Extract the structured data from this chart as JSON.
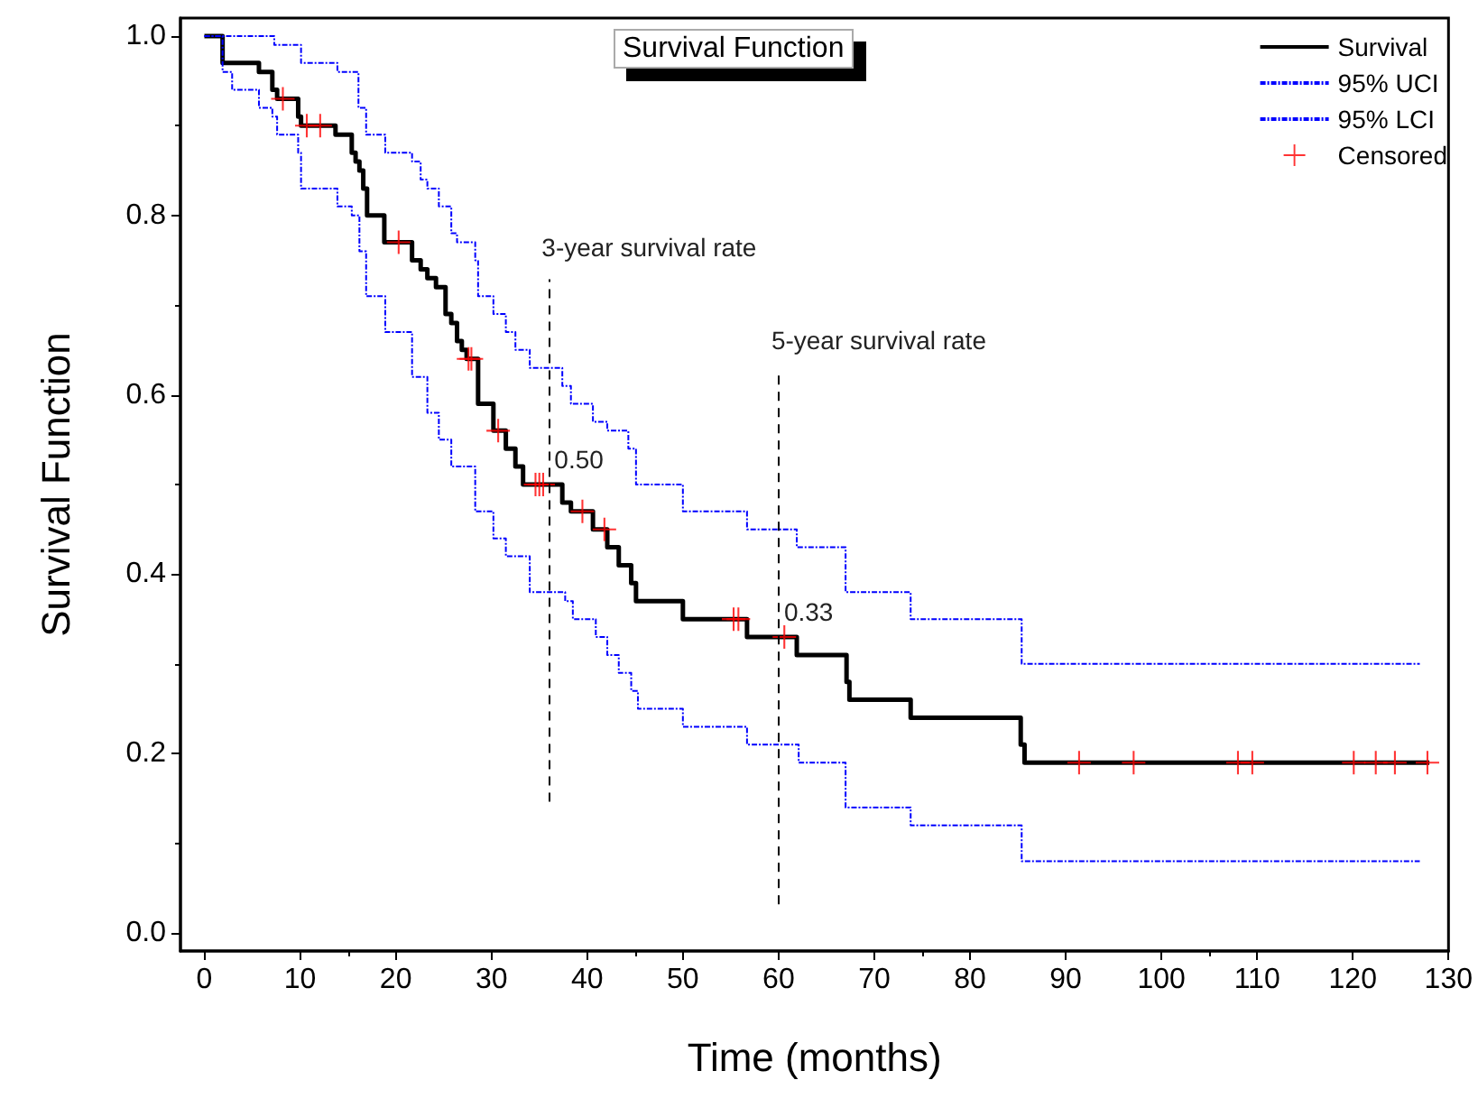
{
  "chart_data": {
    "type": "step",
    "title": "Survival Function",
    "xlabel": "Time (months)",
    "ylabel": "Survival Function",
    "xlim": [
      -2.5,
      130
    ],
    "xticks": [
      0,
      10,
      20,
      30,
      40,
      50,
      60,
      70,
      80,
      90,
      100,
      110,
      120,
      130
    ],
    "ylim": [
      -0.02,
      1.02
    ],
    "yticks": [
      {
        "value": 0,
        "label": "0.0"
      },
      0.2,
      0.4,
      0.6,
      0.8,
      {
        "value": 1,
        "label": "1.0"
      }
    ],
    "grid": false,
    "legend": "top right",
    "marker": "none",
    "series": [
      {
        "name": "Survival",
        "color": "#000000",
        "line_style": "solid",
        "x": [
          0,
          1.9,
          5.7,
          7.1,
          7.6,
          9.8,
          10.1,
          13.7,
          15.4,
          15.8,
          16.2,
          16.6,
          17.0,
          18.8,
          21.7,
          22.6,
          23.3,
          24.2,
          25.2,
          25.8,
          26.4,
          26.9,
          27.4,
          28.6,
          30.2,
          31.5,
          32.5,
          33.3,
          37.4,
          38.3,
          40.6,
          42.1,
          43.3,
          44.6,
          45.1,
          50.0,
          56.7,
          61.9,
          67.1,
          67.4,
          73.8,
          85.3,
          85.7,
          128
        ],
        "values": [
          1.0,
          0.97,
          0.96,
          0.94,
          0.93,
          0.91,
          0.9,
          0.89,
          0.87,
          0.86,
          0.85,
          0.83,
          0.8,
          0.77,
          0.75,
          0.74,
          0.73,
          0.72,
          0.69,
          0.68,
          0.66,
          0.65,
          0.64,
          0.59,
          0.56,
          0.54,
          0.52,
          0.5,
          0.48,
          0.47,
          0.45,
          0.43,
          0.41,
          0.39,
          0.37,
          0.35,
          0.33,
          0.31,
          0.28,
          0.26,
          0.24,
          0.21,
          0.19,
          0.19
        ]
      },
      {
        "name": "95% UCI",
        "color": "#0000ff",
        "line_style": "dashed",
        "x": [
          0,
          7.3,
          10.1,
          13.9,
          16.1,
          16.9,
          18.9,
          21.7,
          22.6,
          23.3,
          24.5,
          25.8,
          26.4,
          28.3,
          28.6,
          30.2,
          31.5,
          32.5,
          34.0,
          37.4,
          38.3,
          40.6,
          42.1,
          44.3,
          45.1,
          50.0,
          56.7,
          61.9,
          67.0,
          73.8,
          85.4,
          127
        ],
        "values": [
          1.0,
          0.99,
          0.97,
          0.96,
          0.92,
          0.89,
          0.87,
          0.86,
          0.84,
          0.83,
          0.81,
          0.78,
          0.77,
          0.75,
          0.71,
          0.69,
          0.67,
          0.65,
          0.63,
          0.61,
          0.59,
          0.57,
          0.56,
          0.54,
          0.5,
          0.47,
          0.45,
          0.43,
          0.38,
          0.35,
          0.3,
          0.3
        ]
      },
      {
        "name": "95% LCI",
        "color": "#0000ff",
        "line_style": "dashed",
        "x": [
          0,
          1.9,
          2.9,
          5.7,
          7.1,
          7.6,
          9.8,
          10.1,
          13.9,
          15.4,
          16.2,
          16.9,
          18.9,
          21.7,
          23.3,
          24.5,
          25.8,
          28.3,
          30.2,
          31.5,
          34.0,
          37.7,
          38.5,
          40.9,
          42.1,
          43.3,
          44.6,
          45.3,
          50.0,
          56.7,
          62.1,
          67.0,
          73.8,
          85.4,
          127
        ],
        "values": [
          1.0,
          0.96,
          0.94,
          0.92,
          0.91,
          0.89,
          0.87,
          0.83,
          0.81,
          0.8,
          0.76,
          0.71,
          0.67,
          0.62,
          0.58,
          0.55,
          0.52,
          0.47,
          0.44,
          0.42,
          0.38,
          0.37,
          0.35,
          0.33,
          0.31,
          0.29,
          0.27,
          0.25,
          0.23,
          0.21,
          0.19,
          0.14,
          0.12,
          0.08,
          0.08
        ]
      },
      {
        "name": "Censored",
        "type": "scatter",
        "color": "#ff0000",
        "marker": "cross",
        "x": [
          8.2,
          10.7,
          12.1,
          20.3,
          27.6,
          27.9,
          30.7,
          34.6,
          35.0,
          35.4,
          39.5,
          41.8,
          55.3,
          55.8,
          60.6,
          91.4,
          97.1,
          108.0,
          109.5,
          120.1,
          122.4,
          124.4,
          127.8
        ],
        "values": [
          0.93,
          0.9,
          0.9,
          0.77,
          0.64,
          0.64,
          0.56,
          0.5,
          0.5,
          0.5,
          0.47,
          0.45,
          0.35,
          0.35,
          0.33,
          0.19,
          0.19,
          0.19,
          0.19,
          0.19,
          0.19,
          0.19,
          0.19
        ]
      }
    ],
    "ref_lines": [
      {
        "axis": "x",
        "value": 36,
        "label": "3-year survival rate",
        "color": "#000000",
        "line_style": "dashed"
      },
      {
        "axis": "x",
        "value": 60,
        "label": "5-year survival rate",
        "color": "#000000",
        "line_style": "dashed"
      }
    ],
    "annotations": [
      {
        "text": "0.50",
        "x": 36,
        "y": 0.5
      },
      {
        "text": "0.33",
        "x": 60,
        "y": 0.33
      }
    ]
  }
}
